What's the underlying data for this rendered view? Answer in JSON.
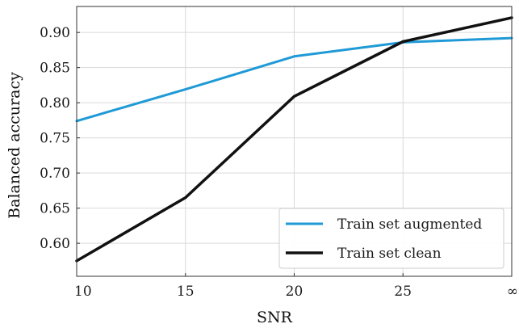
{
  "chart_data": {
    "type": "line",
    "title": "",
    "xlabel": "SNR",
    "ylabel": "Balanced accuracy",
    "categories": [
      "10",
      "15",
      "20",
      "25",
      "∞"
    ],
    "ylim": [
      0.553,
      0.937
    ],
    "yticks": [
      "0.60",
      "0.65",
      "0.70",
      "0.75",
      "0.80",
      "0.85",
      "0.90"
    ],
    "grid": true,
    "legend_position": "bottom-right",
    "series": [
      {
        "name": "Train set augmented",
        "color": "#1f9ad6",
        "values": [
          0.774,
          0.819,
          0.866,
          0.886,
          0.892
        ]
      },
      {
        "name": "Train set clean",
        "color": "#111111",
        "values": [
          0.575,
          0.665,
          0.809,
          0.887,
          0.921
        ]
      }
    ]
  }
}
